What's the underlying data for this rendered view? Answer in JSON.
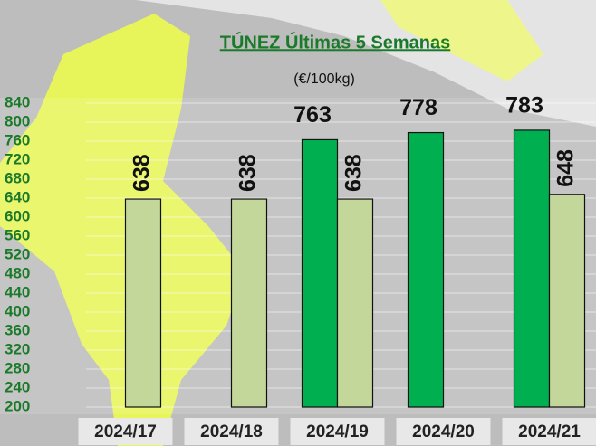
{
  "chart_data": {
    "type": "bar",
    "title": "TÚNEZ Últimas 5 Semanas",
    "subtitle": "(€/100kg)",
    "categories": [
      "2024/17",
      "2024/18",
      "2024/19",
      "2024/20",
      "2024/21"
    ],
    "series": [
      {
        "color": "#00b050",
        "values": [
          null,
          null,
          763,
          778,
          783
        ]
      },
      {
        "color": "#c4d79b",
        "values": [
          638,
          638,
          638,
          null,
          648
        ]
      }
    ],
    "ylim": [
      200,
      840
    ],
    "yticks": [
      200,
      240,
      280,
      320,
      360,
      400,
      440,
      480,
      520,
      560,
      600,
      640,
      680,
      720,
      760,
      800,
      840
    ],
    "grid": true
  }
}
